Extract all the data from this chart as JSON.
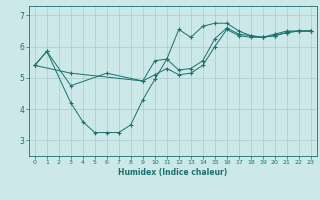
{
  "xlabel": "Humidex (Indice chaleur)",
  "background_color": "#cce8e8",
  "grid_color": "#aacccc",
  "line_color": "#1a7070",
  "xlim": [
    -0.5,
    23.5
  ],
  "ylim": [
    2.5,
    7.3
  ],
  "yticks": [
    3,
    4,
    5,
    6,
    7
  ],
  "xticks": [
    0,
    1,
    2,
    3,
    4,
    5,
    6,
    7,
    8,
    9,
    10,
    11,
    12,
    13,
    14,
    15,
    16,
    17,
    18,
    19,
    20,
    21,
    22,
    23
  ],
  "line1": {
    "x": [
      0,
      1,
      3,
      4,
      5,
      6,
      7,
      8,
      9,
      10,
      11,
      12,
      13,
      14,
      15,
      16,
      17,
      18,
      19,
      20,
      21,
      22,
      23
    ],
    "y": [
      5.4,
      5.85,
      4.2,
      3.6,
      3.25,
      3.25,
      3.25,
      3.5,
      4.3,
      4.95,
      5.6,
      6.55,
      6.3,
      6.65,
      6.75,
      6.75,
      6.5,
      6.35,
      6.3,
      6.4,
      6.5,
      6.5,
      6.5
    ]
  },
  "line2": {
    "x": [
      0,
      1,
      3,
      6,
      9,
      10,
      11,
      12,
      13,
      14,
      15,
      16,
      17,
      18,
      19,
      20,
      21,
      22,
      23
    ],
    "y": [
      5.4,
      5.85,
      4.75,
      5.15,
      4.9,
      5.55,
      5.6,
      5.25,
      5.3,
      5.55,
      6.25,
      6.6,
      6.4,
      6.35,
      6.3,
      6.35,
      6.45,
      6.5,
      6.5
    ]
  },
  "line3": {
    "x": [
      0,
      3,
      9,
      10,
      11,
      12,
      13,
      14,
      15,
      16,
      17,
      18,
      19,
      20,
      21,
      22,
      23
    ],
    "y": [
      5.4,
      5.15,
      4.9,
      5.1,
      5.3,
      5.1,
      5.15,
      5.4,
      6.0,
      6.55,
      6.35,
      6.3,
      6.3,
      6.35,
      6.45,
      6.5,
      6.5
    ]
  }
}
